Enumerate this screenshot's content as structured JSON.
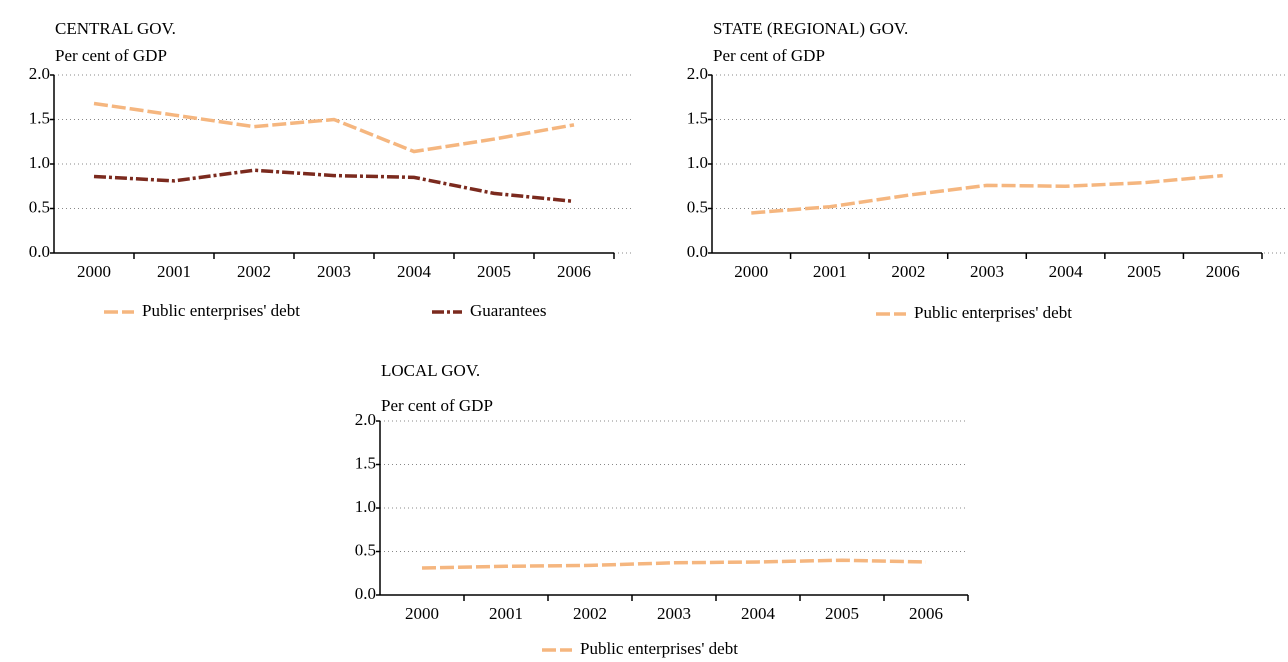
{
  "chart_data": [
    {
      "type": "line",
      "title": "CENTRAL GOV.",
      "y_label": "Per cent of GDP",
      "categories": [
        "2000",
        "2001",
        "2002",
        "2003",
        "2004",
        "2005",
        "2006"
      ],
      "series": [
        {
          "name": "Public enterprises' debt",
          "color": "#f5b67f",
          "values": [
            1.68,
            1.55,
            1.42,
            1.5,
            1.14,
            1.28,
            1.44
          ]
        },
        {
          "name": "Guarantees",
          "color": "#7b2a1e",
          "values": [
            0.86,
            0.81,
            0.93,
            0.87,
            0.85,
            0.67,
            0.58
          ]
        }
      ],
      "ylim": [
        0,
        2
      ],
      "yticks": [
        {
          "value": 0,
          "label": "0.0"
        },
        0.5,
        {
          "value": 1,
          "label": "1.0"
        },
        1.5,
        {
          "value": 2,
          "label": "2.0"
        }
      ],
      "grid": true
    },
    {
      "type": "line",
      "title": "STATE (REGIONAL) GOV.",
      "y_label": "Per cent of GDP",
      "categories": [
        "2000",
        "2001",
        "2002",
        "2003",
        "2004",
        "2005",
        "2006"
      ],
      "series": [
        {
          "name": "Public enterprises' debt",
          "color": "#f5b67f",
          "values": [
            0.45,
            0.52,
            0.65,
            0.76,
            0.75,
            0.79,
            0.87
          ]
        }
      ],
      "ylim": [
        0,
        2
      ],
      "yticks": [
        {
          "value": 0,
          "label": "0.0"
        },
        0.5,
        {
          "value": 1,
          "label": "1.0"
        },
        1.5,
        {
          "value": 2,
          "label": "2.0"
        }
      ],
      "grid": true
    },
    {
      "type": "line",
      "title": "LOCAL GOV.",
      "y_label": "Per cent of GDP",
      "categories": [
        "2000",
        "2001",
        "2002",
        "2003",
        "2004",
        "2005",
        "2006"
      ],
      "series": [
        {
          "name": "Public enterprises' debt",
          "color": "#f5b67f",
          "values": [
            0.31,
            0.33,
            0.34,
            0.37,
            0.38,
            0.4,
            0.38
          ]
        }
      ],
      "ylim": [
        0,
        2
      ],
      "yticks": [
        {
          "value": 0,
          "label": "0.0"
        },
        0.5,
        {
          "value": 1,
          "label": "1.0"
        },
        1.5,
        {
          "value": 2,
          "label": "2.0"
        }
      ],
      "grid": true
    }
  ]
}
